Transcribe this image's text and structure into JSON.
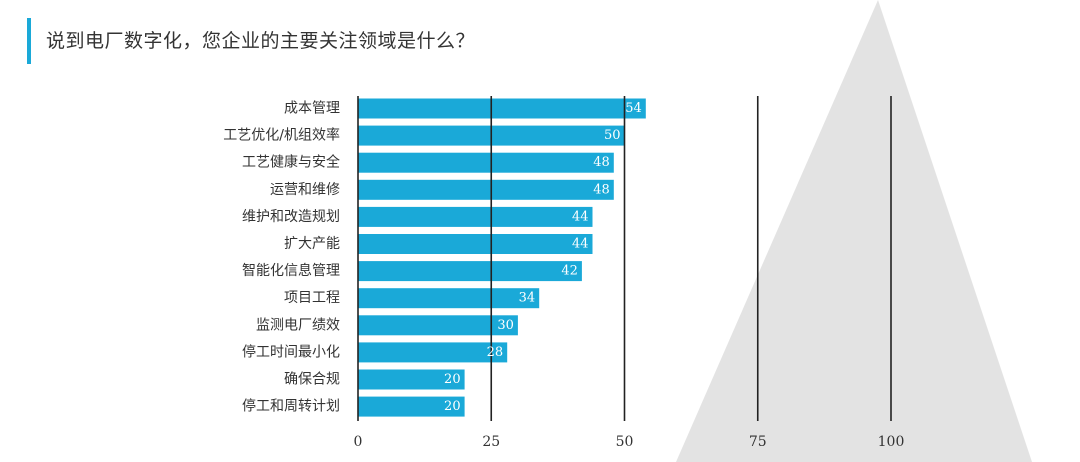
{
  "title": "说到电厂数字化，您企业的主要关注领域是什么？",
  "colors": {
    "bar": "#1aa9d8",
    "accent": "#1aa9d8",
    "grid": "#222222",
    "background_shape": "#e3e3e3",
    "text": "#333333",
    "value_text": "#ffffff"
  },
  "chart_data": {
    "type": "bar",
    "orientation": "horizontal",
    "categories": [
      "成本管理",
      "工艺优化/机组效率",
      "工艺健康与安全",
      "运营和维修",
      "维护和改造规划",
      "扩大产能",
      "智能化信息管理",
      "项目工程",
      "监测电厂绩效",
      "停工时间最小化",
      "确保合规",
      "停工和周转计划"
    ],
    "values": [
      54,
      50,
      48,
      48,
      44,
      44,
      42,
      34,
      30,
      28,
      20,
      20
    ],
    "xlim": [
      0,
      100
    ],
    "xticks": [
      0,
      25,
      50,
      75,
      100
    ],
    "grid": true,
    "legend": "none",
    "data_labels": true
  }
}
